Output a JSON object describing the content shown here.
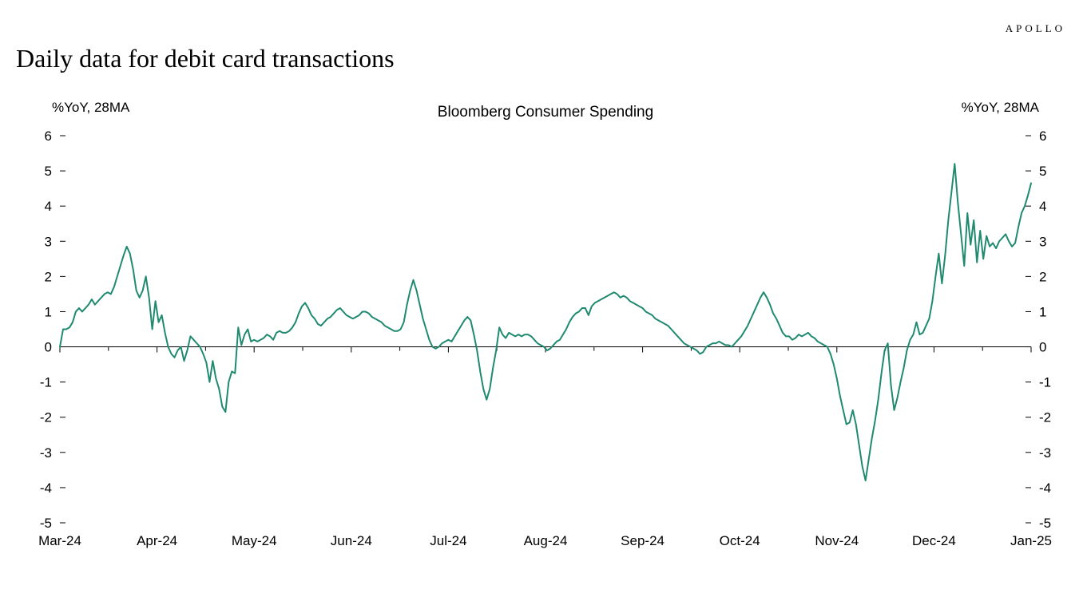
{
  "brand": "APOLLO",
  "title": "Daily data for debit card transactions",
  "chart": {
    "type": "line",
    "subtitle": "Bloomberg Consumer Spending",
    "y_axis_label_left": "%YoY, 28MA",
    "y_axis_label_right": "%YoY, 28MA",
    "line_color": "#1f8a70",
    "line_width": 2,
    "background_color": "#ffffff",
    "axis_color": "#000000",
    "tick_color": "#000000",
    "subtitle_fontsize": 19,
    "axis_label_fontsize": 17,
    "tick_label_fontsize": 17,
    "ylim": [
      -5,
      6
    ],
    "yticks": [
      -5,
      -4,
      -3,
      -2,
      -1,
      0,
      1,
      2,
      3,
      4,
      5,
      6
    ],
    "x_tick_labels": [
      "Mar-24",
      "Apr-24",
      "May-24",
      "Jun-24",
      "Jul-24",
      "Aug-24",
      "Sep-24",
      "Oct-24",
      "Nov-24",
      "Dec-24",
      "Jan-25"
    ],
    "x_minor_between": 1,
    "series": [
      0.0,
      0.5,
      0.5,
      0.55,
      0.7,
      1.0,
      1.1,
      1.0,
      1.1,
      1.2,
      1.35,
      1.2,
      1.3,
      1.4,
      1.5,
      1.55,
      1.5,
      1.7,
      2.0,
      2.3,
      2.6,
      2.85,
      2.65,
      2.2,
      1.6,
      1.4,
      1.6,
      2.0,
      1.4,
      0.5,
      1.3,
      0.7,
      0.9,
      0.4,
      0.0,
      -0.2,
      -0.3,
      -0.1,
      0.0,
      -0.4,
      -0.1,
      0.3,
      0.2,
      0.1,
      0.0,
      -0.2,
      -0.45,
      -1.0,
      -0.4,
      -0.9,
      -1.2,
      -1.7,
      -1.85,
      -1.0,
      -0.7,
      -0.75,
      0.55,
      0.05,
      0.35,
      0.5,
      0.15,
      0.2,
      0.15,
      0.2,
      0.25,
      0.35,
      0.3,
      0.2,
      0.4,
      0.45,
      0.4,
      0.4,
      0.45,
      0.55,
      0.7,
      0.95,
      1.15,
      1.25,
      1.1,
      0.9,
      0.8,
      0.65,
      0.6,
      0.7,
      0.8,
      0.85,
      0.95,
      1.05,
      1.1,
      1.0,
      0.9,
      0.85,
      0.8,
      0.85,
      0.9,
      1.0,
      1.0,
      0.95,
      0.85,
      0.8,
      0.75,
      0.7,
      0.6,
      0.55,
      0.5,
      0.45,
      0.45,
      0.5,
      0.7,
      1.2,
      1.6,
      1.9,
      1.6,
      1.2,
      0.8,
      0.5,
      0.2,
      0.0,
      -0.05,
      0.0,
      0.1,
      0.15,
      0.2,
      0.15,
      0.3,
      0.45,
      0.6,
      0.75,
      0.85,
      0.75,
      0.35,
      -0.1,
      -0.7,
      -1.2,
      -1.5,
      -1.2,
      -0.6,
      -0.1,
      0.55,
      0.35,
      0.25,
      0.4,
      0.35,
      0.3,
      0.35,
      0.3,
      0.35,
      0.35,
      0.3,
      0.2,
      0.1,
      0.05,
      0.0,
      -0.1,
      -0.05,
      0.05,
      0.15,
      0.2,
      0.35,
      0.5,
      0.7,
      0.85,
      0.95,
      1.0,
      1.1,
      1.1,
      0.9,
      1.15,
      1.25,
      1.3,
      1.35,
      1.4,
      1.45,
      1.5,
      1.55,
      1.5,
      1.4,
      1.45,
      1.4,
      1.3,
      1.25,
      1.2,
      1.15,
      1.1,
      1.0,
      0.95,
      0.9,
      0.8,
      0.75,
      0.7,
      0.65,
      0.6,
      0.5,
      0.4,
      0.3,
      0.2,
      0.1,
      0.05,
      0.0,
      -0.05,
      -0.1,
      -0.2,
      -0.15,
      0.0,
      0.05,
      0.1,
      0.1,
      0.15,
      0.1,
      0.05,
      0.05,
      0.0,
      0.1,
      0.2,
      0.3,
      0.45,
      0.6,
      0.8,
      1.0,
      1.2,
      1.4,
      1.55,
      1.4,
      1.2,
      0.95,
      0.8,
      0.6,
      0.4,
      0.3,
      0.3,
      0.2,
      0.25,
      0.35,
      0.3,
      0.35,
      0.4,
      0.3,
      0.25,
      0.15,
      0.1,
      0.05,
      0.0,
      -0.2,
      -0.5,
      -0.9,
      -1.4,
      -1.8,
      -2.2,
      -2.15,
      -1.8,
      -2.2,
      -2.8,
      -3.4,
      -3.8,
      -3.2,
      -2.6,
      -2.1,
      -1.5,
      -0.75,
      -0.1,
      0.1,
      -1.1,
      -1.8,
      -1.45,
      -1.0,
      -0.6,
      -0.1,
      0.2,
      0.35,
      0.7,
      0.35,
      0.4,
      0.6,
      0.8,
      1.3,
      2.0,
      2.65,
      1.8,
      2.6,
      3.6,
      4.4,
      5.2,
      4.1,
      3.2,
      2.3,
      3.8,
      2.9,
      3.6,
      2.4,
      3.3,
      2.5,
      3.15,
      2.85,
      2.95,
      2.8,
      3.0,
      3.1,
      3.2,
      3.0,
      2.85,
      2.95,
      3.4,
      3.8,
      4.0,
      4.3,
      4.65
    ]
  }
}
